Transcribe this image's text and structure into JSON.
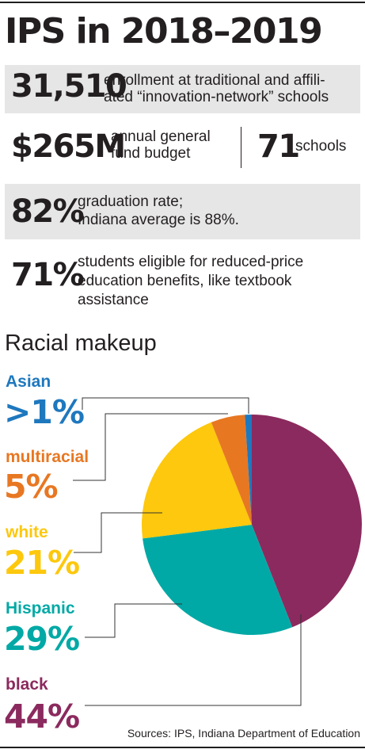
{
  "title": "IPS in 2018–2019",
  "stats": {
    "enrollment": {
      "value": "31,510",
      "text": "enrollment at traditional and affili-ated “innovation-network” schools",
      "line1": "enrollment at traditional and affili-",
      "line2": "ated “innovation-network” schools"
    },
    "budget": {
      "value": "$265M",
      "line1": "annual general",
      "line2": "fund budget"
    },
    "schools": {
      "value": "71",
      "text": "schools"
    },
    "graduation": {
      "value": "82%",
      "line1": "graduation rate;",
      "line2": "Indiana average is 88%."
    },
    "eligible": {
      "value": "71%",
      "line1": "students eligible for reduced-price",
      "line2": "education benefits, like textbook",
      "line3": "assistance"
    }
  },
  "chart_data": {
    "type": "pie",
    "title": "Racial makeup",
    "slices": [
      {
        "label": "black",
        "value_label": "44%",
        "value": 44,
        "color": "#8b2a5e"
      },
      {
        "label": "Hispanic",
        "value_label": "29%",
        "value": 29,
        "color": "#00a9a5"
      },
      {
        "label": "white",
        "value_label": "21%",
        "value": 21,
        "color": "#fdc80d"
      },
      {
        "label": "multiracial",
        "value_label": "5%",
        "value": 5,
        "color": "#e87722"
      },
      {
        "label": "Asian",
        "value_label": ">1%",
        "value": 1,
        "color": "#1e78be"
      }
    ]
  },
  "source": "Sources: IPS, Indiana Department of Education",
  "colors": {
    "band": "#e6e6e6",
    "text": "#231f20"
  }
}
